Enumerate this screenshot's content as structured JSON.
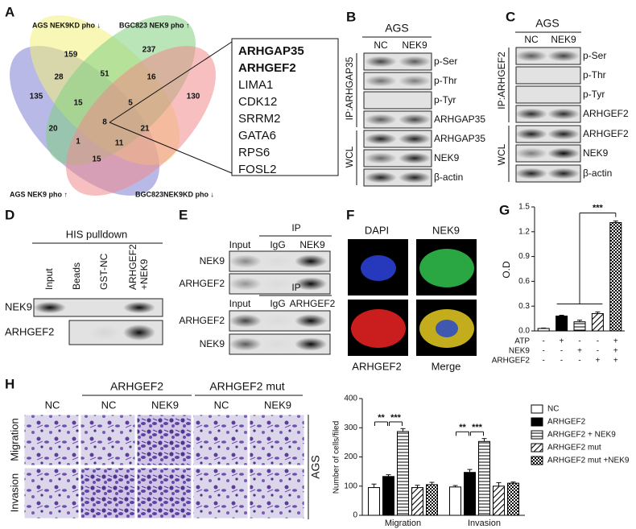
{
  "panel_labels": [
    "A",
    "B",
    "C",
    "D",
    "E",
    "F",
    "G",
    "H"
  ],
  "venn": {
    "sets": [
      "AGS NEK9KD pho ↓",
      "BGC823 NEK9 pho ↑",
      "AGS NEK9 pho ↑",
      "BGC823NEK9KD pho ↓"
    ],
    "set_colors": [
      "#8a7d1a",
      "#3a9a3a",
      "#3a4aa8",
      "#d02a2a"
    ],
    "regions": [
      159,
      237,
      28,
      51,
      16,
      135,
      130,
      15,
      5,
      8,
      20,
      21,
      1,
      11,
      15
    ]
  },
  "gene_list": {
    "highlighted": [
      "ARHGAP35",
      "ARHGEF2"
    ],
    "others": [
      "LIMA1",
      "CDK12",
      "SRRM2",
      "GATA6",
      "RPS6",
      "FOSL2"
    ]
  },
  "panel_b": {
    "cell_line": "AGS",
    "lanes": [
      "NC",
      "NEK9"
    ],
    "ip": "IP:ARHGAP35",
    "wcl": "WCL",
    "rows": [
      "p-Ser",
      "p-Thr",
      "p-Tyr",
      "ARHGAP35",
      "ARHGAP35",
      "NEK9",
      "β-actin"
    ]
  },
  "panel_c": {
    "cell_line": "AGS",
    "lanes": [
      "NC",
      "NEK9"
    ],
    "ip": "IP:ARHGEF2",
    "wcl": "WCL",
    "rows": [
      "p-Ser",
      "p-Thr",
      "p-Tyr",
      "ARHGEF2",
      "ARHGEF2",
      "NEK9",
      "β-actin"
    ]
  },
  "panel_d": {
    "title": "HIS pulldown",
    "lanes": [
      "Input",
      "Beads",
      "GST-NC",
      [
        "ARHGEF2",
        "+NEK9"
      ]
    ],
    "rows": [
      "NEK9",
      "ARHGEF2"
    ]
  },
  "panel_e": {
    "blots": [
      {
        "ip": "IP",
        "lanes": [
          "Input",
          "IgG",
          "NEK9"
        ],
        "rows": [
          "NEK9",
          "ARHGEF2"
        ]
      },
      {
        "ip": "IP",
        "lanes": [
          "Input",
          "IgG",
          "ARHGEF2"
        ],
        "rows": [
          "ARHGEF2",
          "NEK9"
        ]
      }
    ]
  },
  "panel_f": {
    "labels": [
      "DAPI",
      "NEK9",
      "ARHGEF2",
      "Merge"
    ]
  },
  "panel_h": {
    "groups": [
      "ARHGEF2",
      "ARHGEF2 mut"
    ],
    "columns": [
      "NC",
      "NC",
      "NEK9",
      "NC",
      "NEK9"
    ],
    "rows": [
      "Migration",
      "Invasion"
    ],
    "cell_line": "AGS"
  },
  "chart_data": [
    {
      "type": "bar",
      "y_label": "O.D",
      "ylim": [
        0,
        1.5
      ],
      "yticks": [
        {
          "value": 0,
          "label": "0.0"
        },
        {
          "value": 0.3,
          "label": "0.3"
        },
        {
          "value": 0.6,
          "label": "0.6"
        },
        {
          "value": 0.9,
          "label": "0.9"
        },
        {
          "value": 1.2,
          "label": "1.2"
        },
        {
          "value": 1.5,
          "label": "1.5"
        }
      ],
      "values": [
        0.03,
        0.18,
        0.11,
        0.21,
        1.31
      ],
      "errors": [
        0.005,
        0.01,
        0.02,
        0.02,
        0.02
      ],
      "patterns": [
        "white",
        "black",
        "hlines",
        "diag",
        "checker"
      ],
      "conditions": [
        {
          "name": "ATP",
          "signs": [
            "-",
            "+",
            "-",
            "-",
            "+"
          ]
        },
        {
          "name": "NEK9",
          "signs": [
            "-",
            "-",
            "+",
            "-",
            "+"
          ]
        },
        {
          "name": "ARHGEF2",
          "signs": [
            "-",
            "-",
            "-",
            "+",
            "+"
          ]
        }
      ],
      "annotation": "***"
    },
    {
      "type": "grouped_bar",
      "y_label": "Number of cells/filed",
      "categories": [
        "Migration",
        "Invasion"
      ],
      "series": [
        {
          "name": "NC",
          "pattern": "white",
          "values": [
            95,
            97
          ],
          "errors": [
            12,
            5
          ]
        },
        {
          "name": "ARHGEF2",
          "pattern": "black",
          "values": [
            133,
            147
          ],
          "errors": [
            6,
            10
          ]
        },
        {
          "name": "ARHGEF2 + NEK9",
          "pattern": "hlines",
          "values": [
            287,
            253
          ],
          "errors": [
            10,
            10
          ]
        },
        {
          "name": "ARHGEF2 mut",
          "pattern": "diag",
          "values": [
            95,
            100
          ],
          "errors": [
            8,
            12
          ]
        },
        {
          "name": "ARHGEF2 mut +NEK9",
          "pattern": "checker",
          "values": [
            105,
            110
          ],
          "errors": [
            8,
            4
          ]
        }
      ],
      "ylim": [
        0,
        400
      ],
      "yticks": [
        0,
        100,
        200,
        300,
        400
      ],
      "annotations": [
        [
          "**",
          "***"
        ],
        [
          "**",
          "***"
        ]
      ]
    }
  ]
}
